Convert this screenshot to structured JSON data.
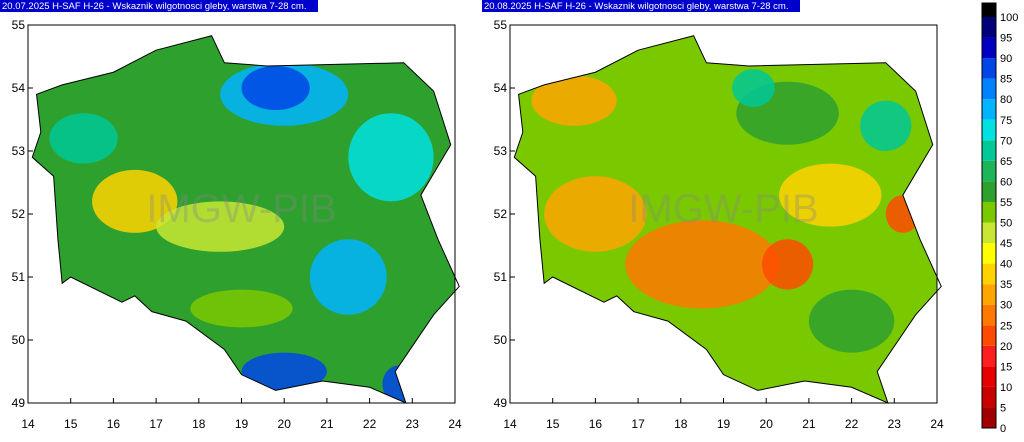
{
  "maps": [
    {
      "title": "20.07.2025 H-SAF H-26 - Wskaznik wilgotnosci gleby, warstwa 7-28 cm.",
      "xticks": [
        14,
        15,
        16,
        17,
        18,
        19,
        20,
        21,
        22,
        23,
        24
      ],
      "yticks": [
        49,
        50,
        51,
        52,
        53,
        54,
        55
      ],
      "watermark": "IMGW-PIB"
    },
    {
      "title": "20.08.2025 H-SAF H-26 - Wskaznik wilgotnosci gleby, warstwa 7-28 cm.",
      "xticks": [
        14,
        15,
        16,
        17,
        18,
        19,
        20,
        21,
        22,
        23,
        24
      ],
      "yticks": [
        49,
        50,
        51,
        52,
        53,
        54,
        55
      ],
      "watermark": "IMGW-PIB"
    }
  ],
  "colorbar": {
    "ticks": [
      0,
      5,
      10,
      15,
      20,
      25,
      30,
      35,
      40,
      45,
      50,
      55,
      60,
      65,
      70,
      75,
      80,
      85,
      90,
      95,
      100
    ],
    "colors": [
      "#a00000",
      "#c80000",
      "#e60000",
      "#ff1e1e",
      "#ff4b00",
      "#ff7800",
      "#ffa500",
      "#ffd200",
      "#ffff00",
      "#c8e632",
      "#7ac800",
      "#2ea02e",
      "#1eb45a",
      "#00c896",
      "#00e1e1",
      "#00b4ff",
      "#0082ff",
      "#0046e6",
      "#0000c0",
      "#000078"
    ]
  }
}
